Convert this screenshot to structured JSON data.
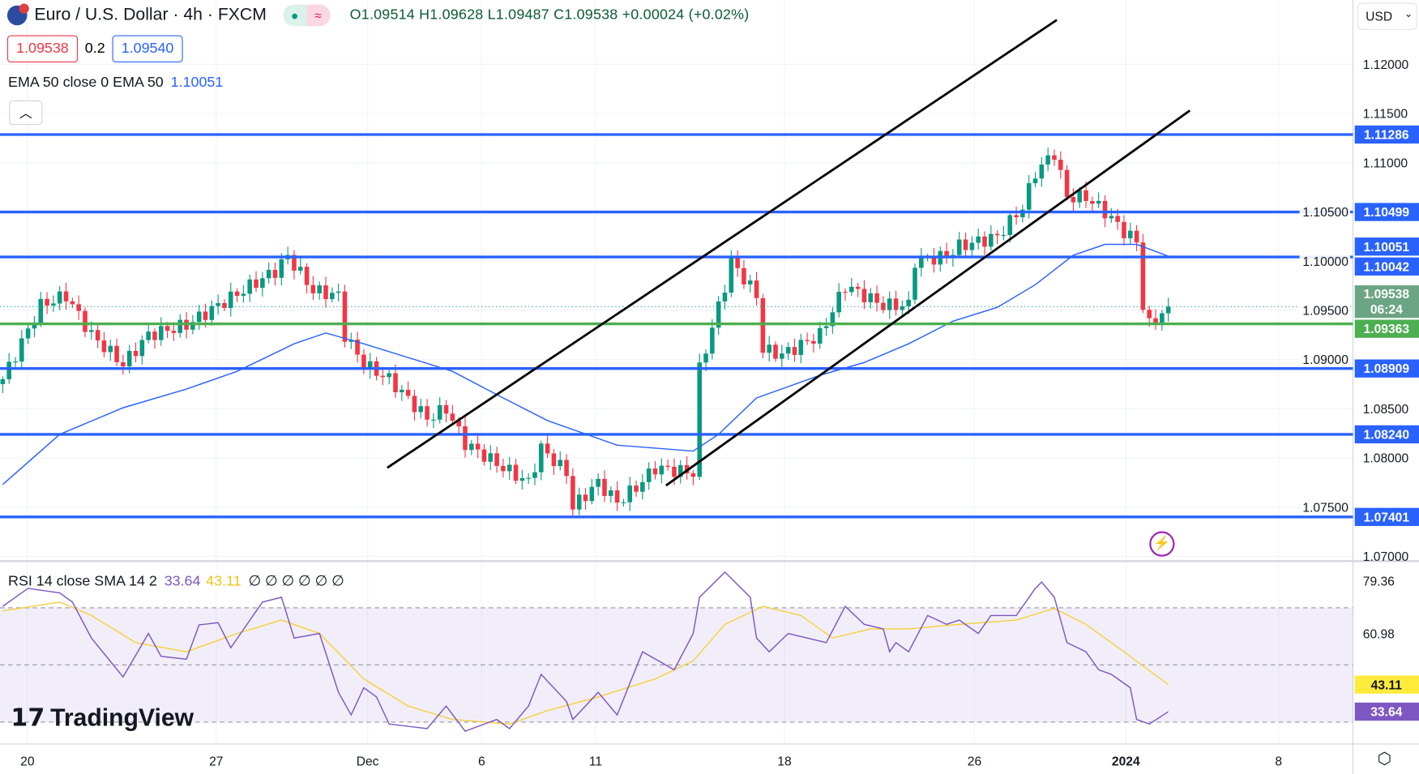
{
  "header": {
    "symbol": "Euro / U.S. Dollar · 4h · FXCM",
    "open": "O1.09514",
    "high": "H1.09628",
    "low": "L1.09487",
    "close": "C1.09538",
    "change": "+0.00024 (+0.02%)"
  },
  "quotes": {
    "sell": "1.09538",
    "spread": "0.2",
    "buy": "1.09540"
  },
  "ema_legend": {
    "label": "EMA 50 close 0 EMA 50",
    "value": "1.10051"
  },
  "rsi_legend": {
    "label": "RSI 14 close SMA 14 2",
    "rsi": "33.64",
    "sma": "43.11",
    "nulls": "∅ ∅ ∅ ∅ ∅ ∅"
  },
  "currency": "USD",
  "logo": "TradingView",
  "colors": {
    "up": "#089981",
    "down": "#f23645",
    "level": "#2962ff",
    "support": "#4caf50",
    "ema": "#2962ff",
    "rsi": "#7e57c2",
    "rsi_sma": "#f5d142"
  },
  "chart_data": [
    {
      "type": "candlestick",
      "title": "EUR/USD 4h",
      "price_ticks": [
        "1.12000",
        "1.11500",
        "1.11000",
        "1.10500",
        "1.10000",
        "1.09500",
        "1.09000",
        "1.08500",
        "1.08000",
        "1.07500",
        "1.07000"
      ],
      "price_tick_values": [
        1.12,
        1.115,
        1.11,
        1.105,
        1.1,
        1.095,
        1.09,
        1.085,
        1.08,
        1.075,
        1.07
      ],
      "date_labels": [
        {
          "bar": 3.9,
          "label": "20"
        },
        {
          "bar": 33.7,
          "label": "27"
        },
        {
          "bar": 57.6,
          "label": "Dec"
        },
        {
          "bar": 75.6,
          "label": "6"
        },
        {
          "bar": 93.6,
          "label": "11"
        },
        {
          "bar": 123.4,
          "label": "18"
        },
        {
          "bar": 153.4,
          "label": "26"
        },
        {
          "bar": 177.3,
          "label": "2024"
        },
        {
          "bar": 201.4,
          "label": "8"
        }
      ],
      "close_path": [
        [
          0,
          1.088
        ],
        [
          6,
          1.0955
        ],
        [
          10,
          1.0965
        ],
        [
          14,
          1.0925
        ],
        [
          19,
          1.0895
        ],
        [
          23,
          1.0925
        ],
        [
          29,
          1.0935
        ],
        [
          34,
          1.0955
        ],
        [
          43,
          1.099
        ],
        [
          45,
          1.1005
        ],
        [
          49,
          1.097
        ],
        [
          53,
          1.0965
        ],
        [
          54,
          1.0925
        ],
        [
          57,
          1.0895
        ],
        [
          61,
          1.088
        ],
        [
          67,
          1.084
        ],
        [
          70,
          1.085
        ],
        [
          73,
          1.0815
        ],
        [
          79,
          1.079
        ],
        [
          83,
          1.0775
        ],
        [
          85,
          1.081
        ],
        [
          89,
          1.0785
        ],
        [
          90,
          1.075
        ],
        [
          94,
          1.0775
        ],
        [
          97,
          1.0755
        ],
        [
          100,
          1.077
        ],
        [
          103,
          1.079
        ],
        [
          109,
          1.0785
        ],
        [
          110,
          1.089
        ],
        [
          114,
          1.0975
        ],
        [
          115,
          1.1
        ],
        [
          119,
          1.0965
        ],
        [
          120,
          1.091
        ],
        [
          123,
          1.0905
        ],
        [
          129,
          1.0925
        ],
        [
          133,
          1.0975
        ],
        [
          139,
          1.0955
        ],
        [
          143,
          1.0955
        ],
        [
          144,
          1.1
        ],
        [
          149,
          1.1005
        ],
        [
          151,
          1.1015
        ],
        [
          157,
          1.1025
        ],
        [
          161,
          1.1055
        ],
        [
          163,
          1.109
        ],
        [
          166,
          1.111
        ],
        [
          168,
          1.1065
        ],
        [
          171,
          1.1065
        ],
        [
          174,
          1.105
        ],
        [
          177,
          1.103
        ],
        [
          179,
          1.102
        ],
        [
          180,
          1.0955
        ],
        [
          181,
          1.0935
        ],
        [
          184,
          1.09538
        ]
      ],
      "ema50": [
        [
          0,
          1.0773
        ],
        [
          9,
          1.0824
        ],
        [
          19,
          1.0851
        ],
        [
          29,
          1.087
        ],
        [
          37,
          1.0888
        ],
        [
          46,
          1.0916
        ],
        [
          51,
          1.0927
        ],
        [
          57,
          1.0916
        ],
        [
          64,
          1.0902
        ],
        [
          71,
          1.0888
        ],
        [
          79,
          1.0861
        ],
        [
          86,
          1.0838
        ],
        [
          97,
          1.0813
        ],
        [
          109,
          1.0807
        ],
        [
          113,
          1.0824
        ],
        [
          119,
          1.0861
        ],
        [
          129,
          1.0884
        ],
        [
          136,
          1.0897
        ],
        [
          143,
          1.0916
        ],
        [
          150,
          1.0939
        ],
        [
          157,
          1.0953
        ],
        [
          163,
          1.0976
        ],
        [
          169,
          1.1006
        ],
        [
          174,
          1.1017
        ],
        [
          179,
          1.1017
        ],
        [
          184,
          1.1005
        ]
      ],
      "levels": [
        {
          "price": 1.11286,
          "label": "1.11286",
          "kind": "resistance"
        },
        {
          "price": 1.10499,
          "label": "1.10499",
          "kind": "resistance"
        },
        {
          "price": 1.10042,
          "label": "1.10042",
          "kind": "resistance"
        },
        {
          "price": 1.09363,
          "label": "1.09363",
          "kind": "support"
        },
        {
          "price": 1.08909,
          "label": "1.08909",
          "kind": "support"
        },
        {
          "price": 1.0824,
          "label": "1.08240",
          "kind": "support"
        },
        {
          "price": 1.07401,
          "label": "1.07401",
          "kind": "support"
        }
      ],
      "ema_badge": {
        "price": 1.10051,
        "label": "1.10051"
      },
      "last_price": {
        "price": 1.09538,
        "label": "1.09538",
        "countdown": "06:24"
      },
      "trendlines": [
        [
          [
            60.7,
            1.079
          ],
          [
            166.4,
            1.1245
          ]
        ],
        [
          [
            104.7,
            1.0772
          ],
          [
            187.4,
            1.1153
          ]
        ]
      ]
    },
    {
      "type": "line",
      "title": "RSI 14",
      "ticks": [
        "79.36",
        "60.98"
      ],
      "tick_values": [
        79.36,
        60.98
      ],
      "bands": [
        70,
        50,
        30
      ],
      "rsi": [
        [
          0,
          70.5
        ],
        [
          4,
          76.8
        ],
        [
          9,
          75.2
        ],
        [
          11,
          72
        ],
        [
          14,
          59.4
        ],
        [
          19,
          45.8
        ],
        [
          23,
          61
        ],
        [
          25,
          53
        ],
        [
          29,
          52
        ],
        [
          31,
          64
        ],
        [
          34,
          64.8
        ],
        [
          36,
          56
        ],
        [
          41,
          72
        ],
        [
          44,
          73.7
        ],
        [
          46,
          59.4
        ],
        [
          50,
          61
        ],
        [
          53,
          40.4
        ],
        [
          55,
          32.5
        ],
        [
          57,
          42
        ],
        [
          59,
          38.8
        ],
        [
          61,
          29.3
        ],
        [
          67,
          27.7
        ],
        [
          70,
          35.6
        ],
        [
          73,
          26.8
        ],
        [
          78,
          30.9
        ],
        [
          80,
          27.7
        ],
        [
          83,
          35.6
        ],
        [
          85,
          46.7
        ],
        [
          89,
          37.2
        ],
        [
          90,
          30.9
        ],
        [
          94,
          40.4
        ],
        [
          97,
          32.5
        ],
        [
          101,
          54.6
        ],
        [
          106,
          48.3
        ],
        [
          109,
          61
        ],
        [
          110,
          73.7
        ],
        [
          114,
          82.5
        ],
        [
          118,
          73.7
        ],
        [
          119,
          59.4
        ],
        [
          121,
          54.6
        ],
        [
          124,
          61
        ],
        [
          130,
          57.8
        ],
        [
          133,
          70.5
        ],
        [
          136,
          64.2
        ],
        [
          139,
          62.6
        ],
        [
          140,
          54.6
        ],
        [
          141,
          57.8
        ],
        [
          143,
          54.6
        ],
        [
          146,
          67.3
        ],
        [
          149,
          64.2
        ],
        [
          151,
          65.7
        ],
        [
          154,
          61
        ],
        [
          156,
          67.3
        ],
        [
          160,
          67.3
        ],
        [
          163,
          76.8
        ],
        [
          164,
          79
        ],
        [
          166,
          73.7
        ],
        [
          168,
          57.8
        ],
        [
          171,
          54.6
        ],
        [
          173,
          48.3
        ],
        [
          175,
          46.7
        ],
        [
          178,
          42
        ],
        [
          179,
          30.9
        ],
        [
          181,
          29.3
        ],
        [
          184,
          33.64
        ]
      ],
      "sma": [
        [
          0,
          68.9
        ],
        [
          9,
          72
        ],
        [
          14,
          67.3
        ],
        [
          21,
          57.8
        ],
        [
          29,
          54.6
        ],
        [
          37,
          61
        ],
        [
          44,
          65.7
        ],
        [
          50,
          61
        ],
        [
          57,
          45.1
        ],
        [
          64,
          35.6
        ],
        [
          71,
          30.9
        ],
        [
          80,
          29.3
        ],
        [
          86,
          34
        ],
        [
          94,
          38.8
        ],
        [
          103,
          45.1
        ],
        [
          109,
          51.4
        ],
        [
          114,
          64.2
        ],
        [
          120,
          70.5
        ],
        [
          126,
          67.3
        ],
        [
          131,
          59.4
        ],
        [
          137,
          62.6
        ],
        [
          143,
          62.6
        ],
        [
          151,
          64.2
        ],
        [
          160,
          65.7
        ],
        [
          166,
          69.8
        ],
        [
          171,
          64.2
        ],
        [
          177,
          54.6
        ],
        [
          184,
          43.11
        ]
      ],
      "rsi_badge": "33.64",
      "sma_badge": "43.11"
    }
  ]
}
